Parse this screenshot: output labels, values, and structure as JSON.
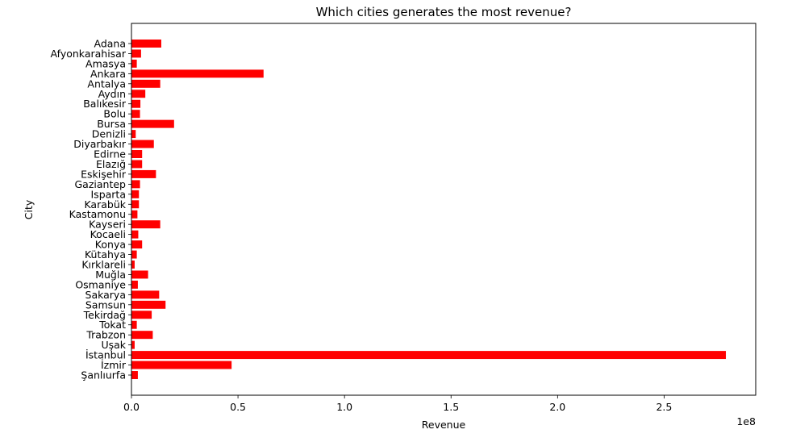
{
  "chart_data": {
    "type": "bar",
    "orientation": "horizontal",
    "title": "Which cities generates the most revenue?",
    "xlabel": "Revenue",
    "ylabel": "City",
    "x_offset_label": "1e8",
    "x_scale": 100000000,
    "xlim": [
      0,
      2.93
    ],
    "xticks": [
      0.0,
      0.5,
      1.0,
      1.5,
      2.0,
      2.5
    ],
    "xtick_labels": [
      "0.0",
      "0.5",
      "1.0",
      "1.5",
      "2.0",
      "2.5"
    ],
    "bar_color": "#ff0000",
    "grid": false,
    "categories": [
      "Adana",
      "Afyonkarahisar",
      "Amasya",
      "Ankara",
      "Antalya",
      "Aydın",
      "Balıkesir",
      "Bolu",
      "Bursa",
      "Denizli",
      "Diyarbakır",
      "Edirne",
      "Elazığ",
      "Eskişehir",
      "Gaziantep",
      "Isparta",
      "Karabük",
      "Kastamonu",
      "Kayseri",
      "Kocaeli",
      "Konya",
      "Kütahya",
      "Kırklareli",
      "Muğla",
      "Osmaniye",
      "Sakarya",
      "Samsun",
      "Tekirdağ",
      "Tokat",
      "Trabzon",
      "Uşak",
      "İstanbul",
      "İzmir",
      "Şanlıurfa"
    ],
    "values": [
      0.14,
      0.045,
      0.025,
      0.62,
      0.135,
      0.065,
      0.042,
      0.04,
      0.2,
      0.02,
      0.105,
      0.05,
      0.05,
      0.115,
      0.04,
      0.035,
      0.035,
      0.028,
      0.135,
      0.032,
      0.05,
      0.025,
      0.015,
      0.078,
      0.03,
      0.13,
      0.16,
      0.095,
      0.025,
      0.1,
      0.015,
      2.79,
      0.47,
      0.03
    ]
  }
}
